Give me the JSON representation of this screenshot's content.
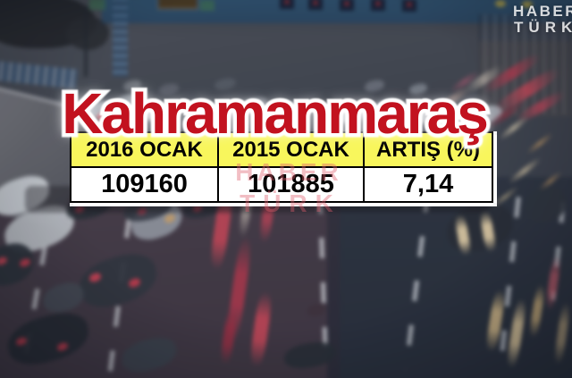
{
  "page": {
    "title": "Kahramanmaraş"
  },
  "brand_logo": {
    "line1": "HABER",
    "line2": "TÜRK"
  },
  "watermark": {
    "line1": "HABER",
    "line2": "TÜRK"
  },
  "chart_data": {
    "type": "table",
    "title": "Kahramanmaraş",
    "columns": [
      "2016 OCAK",
      "2015 OCAK",
      "ARTIŞ (%)"
    ],
    "rows": [
      [
        "109160",
        "101885",
        "7,14"
      ]
    ],
    "legend_position": "none",
    "grid": false
  },
  "colors": {
    "title_red": "#c2121f",
    "glow_white": "#ffffff",
    "header_yellow": "#f8f65c",
    "cell_white": "#ffffff",
    "border_black": "#000000"
  }
}
